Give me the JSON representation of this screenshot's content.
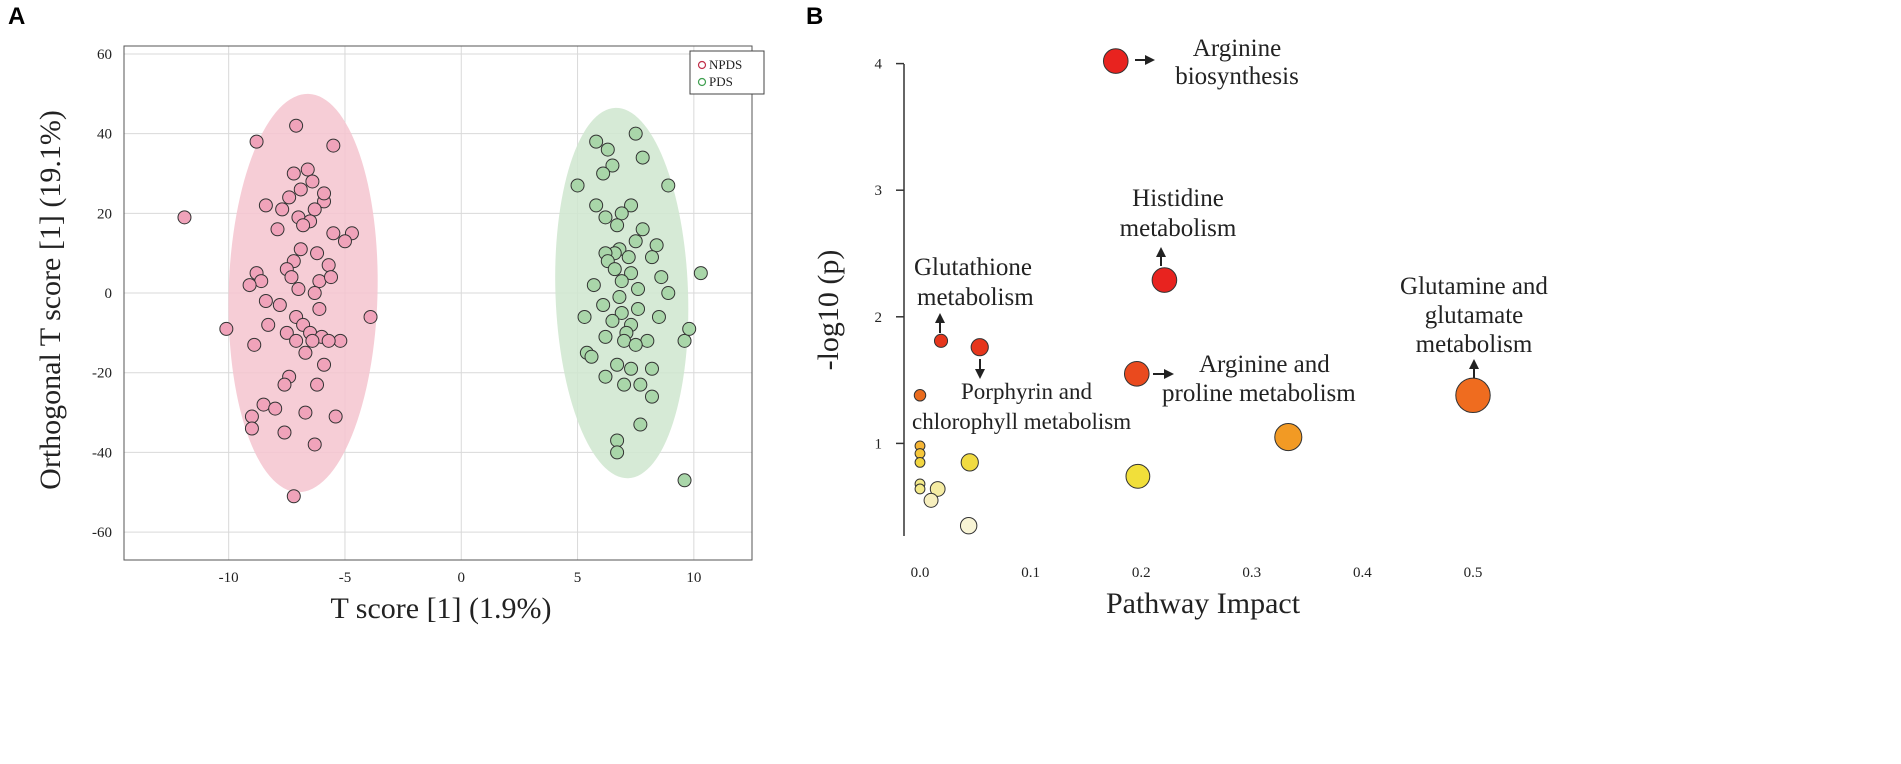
{
  "figure": {
    "panels": [
      "A",
      "B"
    ]
  },
  "chart_data": [
    {
      "type": "scatter",
      "panel": "A",
      "title": "",
      "xlabel": "T score [1] (1.9%)",
      "ylabel": "Orthogonal T score [1] (19.1%)",
      "xlim": [
        -14.5,
        12.5
      ],
      "ylim": [
        -67,
        62
      ],
      "xticks": [
        -10,
        -5,
        0,
        5,
        10
      ],
      "xtick_labels": [
        "-10",
        "-5",
        "0",
        "5",
        "10"
      ],
      "yticks": [
        60,
        40,
        20,
        0,
        -20,
        -40,
        -60
      ],
      "ytick_labels": [
        "60",
        "40",
        "20",
        "0",
        "-20",
        "-40",
        "-60"
      ],
      "grid": true,
      "legend_position": "top-right",
      "series": [
        {
          "name": "NPDS",
          "color": "#f0a3ba",
          "ellipse": {
            "cx": -6.8,
            "cy": 0,
            "rx": 3.2,
            "ry": 50,
            "fill": "#f5c4cf"
          },
          "points": [
            [
              -7.1,
              42
            ],
            [
              -8.8,
              38
            ],
            [
              -5.5,
              37
            ],
            [
              -6.6,
              31
            ],
            [
              -7.2,
              30
            ],
            [
              -6.4,
              28
            ],
            [
              -6.9,
              26
            ],
            [
              -7.4,
              24
            ],
            [
              -5.9,
              23
            ],
            [
              -6.3,
              21
            ],
            [
              -8.4,
              22
            ],
            [
              -7.7,
              21
            ],
            [
              -7.0,
              19
            ],
            [
              -6.5,
              18
            ],
            [
              -6.8,
              17
            ],
            [
              -7.9,
              16
            ],
            [
              -4.7,
              15
            ],
            [
              -5.5,
              15
            ],
            [
              -5.0,
              13
            ],
            [
              -6.9,
              11
            ],
            [
              -6.2,
              10
            ],
            [
              -7.2,
              8
            ],
            [
              -5.7,
              7
            ],
            [
              -7.5,
              6
            ],
            [
              -8.8,
              5
            ],
            [
              -7.3,
              4
            ],
            [
              -6.1,
              3
            ],
            [
              -8.6,
              3
            ],
            [
              -5.6,
              4
            ],
            [
              -9.1,
              2
            ],
            [
              -7.0,
              1
            ],
            [
              -6.3,
              0
            ],
            [
              -8.4,
              -2
            ],
            [
              -7.8,
              -3
            ],
            [
              -6.1,
              -4
            ],
            [
              -7.1,
              -6
            ],
            [
              -6.8,
              -8
            ],
            [
              -8.3,
              -8
            ],
            [
              -6.5,
              -10
            ],
            [
              -7.5,
              -10
            ],
            [
              -6.0,
              -11
            ],
            [
              -5.2,
              -12
            ],
            [
              -7.1,
              -12
            ],
            [
              -6.4,
              -12
            ],
            [
              -5.7,
              -12
            ],
            [
              -10.1,
              -9
            ],
            [
              -8.9,
              -13
            ],
            [
              -6.7,
              -15
            ],
            [
              -5.9,
              -18
            ],
            [
              -7.4,
              -21
            ],
            [
              -7.6,
              -23
            ],
            [
              -6.2,
              -23
            ],
            [
              -8.5,
              -28
            ],
            [
              -8.0,
              -29
            ],
            [
              -6.7,
              -30
            ],
            [
              -9.0,
              -31
            ],
            [
              -5.4,
              -31
            ],
            [
              -9.0,
              -34
            ],
            [
              -7.6,
              -35
            ],
            [
              -6.3,
              -38
            ],
            [
              -7.2,
              -51
            ],
            [
              -11.9,
              19
            ],
            [
              -3.9,
              -6
            ],
            [
              -5.9,
              25
            ]
          ]
        },
        {
          "name": "PDS",
          "color": "#a9d6a9",
          "ellipse": {
            "cx": 6.9,
            "cy": 0,
            "rx": 2.85,
            "ry": 46.5,
            "fill": "#cfe6cf"
          },
          "points": [
            [
              7.5,
              40
            ],
            [
              5.8,
              38
            ],
            [
              6.3,
              36
            ],
            [
              7.8,
              34
            ],
            [
              6.5,
              32
            ],
            [
              6.1,
              30
            ],
            [
              5.0,
              27
            ],
            [
              8.9,
              27
            ],
            [
              5.8,
              22
            ],
            [
              7.3,
              22
            ],
            [
              6.9,
              20
            ],
            [
              6.2,
              19
            ],
            [
              6.7,
              17
            ],
            [
              7.8,
              16
            ],
            [
              7.5,
              13
            ],
            [
              8.4,
              12
            ],
            [
              6.8,
              11
            ],
            [
              6.6,
              10
            ],
            [
              6.2,
              10
            ],
            [
              7.2,
              9
            ],
            [
              8.2,
              9
            ],
            [
              6.3,
              8
            ],
            [
              6.6,
              6
            ],
            [
              7.3,
              5
            ],
            [
              8.6,
              4
            ],
            [
              6.9,
              3
            ],
            [
              5.7,
              2
            ],
            [
              7.6,
              1
            ],
            [
              8.9,
              0
            ],
            [
              6.8,
              -1
            ],
            [
              6.1,
              -3
            ],
            [
              7.6,
              -4
            ],
            [
              6.9,
              -5
            ],
            [
              8.5,
              -6
            ],
            [
              5.3,
              -6
            ],
            [
              6.5,
              -7
            ],
            [
              7.3,
              -8
            ],
            [
              7.1,
              -10
            ],
            [
              6.2,
              -11
            ],
            [
              7.0,
              -12
            ],
            [
              9.6,
              -12
            ],
            [
              8.0,
              -12
            ],
            [
              5.4,
              -15
            ],
            [
              5.6,
              -16
            ],
            [
              6.7,
              -18
            ],
            [
              7.3,
              -19
            ],
            [
              8.2,
              -19
            ],
            [
              6.2,
              -21
            ],
            [
              7.0,
              -23
            ],
            [
              7.7,
              -23
            ],
            [
              8.2,
              -26
            ],
            [
              7.7,
              -33
            ],
            [
              6.7,
              -37
            ],
            [
              6.7,
              -40
            ],
            [
              9.6,
              -47
            ],
            [
              10.3,
              5
            ],
            [
              9.8,
              -9
            ],
            [
              7.5,
              -13
            ]
          ]
        }
      ]
    },
    {
      "type": "scatter",
      "panel": "B",
      "title": "",
      "xlabel": "Pathway Impact",
      "ylabel": "-log10 (p)",
      "xlim": [
        -0.025,
        0.505
      ],
      "ylim": [
        0.31,
        4.1
      ],
      "xticks": [
        0.0,
        0.1,
        0.2,
        0.3,
        0.4,
        0.5
      ],
      "xtick_labels": [
        "0.0",
        "0.1",
        "0.2",
        "0.3",
        "0.4",
        "0.5"
      ],
      "yticks": [
        1,
        2,
        3,
        4
      ],
      "ytick_labels": [
        "1",
        "2",
        "3",
        "4"
      ],
      "grid": false,
      "points": [
        {
          "x": 0.177,
          "y": 4.02,
          "size": 3,
          "color": "#e8231f"
        },
        {
          "x": 0.221,
          "y": 2.29,
          "size": 3,
          "color": "#e8231f"
        },
        {
          "x": 0.019,
          "y": 1.81,
          "size": 1.6,
          "color": "#e6361c"
        },
        {
          "x": 0.054,
          "y": 1.76,
          "size": 2.1,
          "color": "#e6361c"
        },
        {
          "x": 0.196,
          "y": 1.55,
          "size": 3,
          "color": "#ea4a1e"
        },
        {
          "x": 0.0,
          "y": 1.38,
          "size": 1.4,
          "color": "#ea6b1d"
        },
        {
          "x": 0.5,
          "y": 1.38,
          "size": 4.2,
          "color": "#ef6c1f"
        },
        {
          "x": 0.333,
          "y": 1.05,
          "size": 3.3,
          "color": "#f29a24"
        },
        {
          "x": 0.0,
          "y": 0.98,
          "size": 1.2,
          "color": "#f6b534"
        },
        {
          "x": 0.0,
          "y": 0.92,
          "size": 1.2,
          "color": "#f6c73a"
        },
        {
          "x": 0.0,
          "y": 0.85,
          "size": 1.2,
          "color": "#f2d640"
        },
        {
          "x": 0.045,
          "y": 0.85,
          "size": 2.1,
          "color": "#f1db42"
        },
        {
          "x": 0.197,
          "y": 0.74,
          "size": 2.9,
          "color": "#f1df3a"
        },
        {
          "x": 0.0,
          "y": 0.68,
          "size": 1.2,
          "color": "#f4ea8a"
        },
        {
          "x": 0.0,
          "y": 0.64,
          "size": 1.2,
          "color": "#f4ea8a"
        },
        {
          "x": 0.016,
          "y": 0.64,
          "size": 1.8,
          "color": "#f5eca3"
        },
        {
          "x": 0.01,
          "y": 0.55,
          "size": 1.7,
          "color": "#f7efbe"
        },
        {
          "x": 0.044,
          "y": 0.35,
          "size": 2.0,
          "color": "#f8f4d5"
        }
      ],
      "annotations": [
        {
          "lines": [
            "Arginine",
            "biosynthesis"
          ],
          "arrow": "right"
        },
        {
          "lines": [
            "Histidine",
            "metabolism"
          ],
          "arrow": "up"
        },
        {
          "lines": [
            "Glutathione",
            "metabolism"
          ],
          "arrow": "up"
        },
        {
          "lines": [
            "Porphyrin and",
            "chlorophyll metabolism"
          ],
          "arrow": "down"
        },
        {
          "lines": [
            "Arginine and",
            "proline metabolism"
          ],
          "arrow": "right"
        },
        {
          "lines": [
            "Glutamine and",
            "glutamate",
            "metabolism"
          ],
          "arrow": "up"
        }
      ]
    }
  ]
}
